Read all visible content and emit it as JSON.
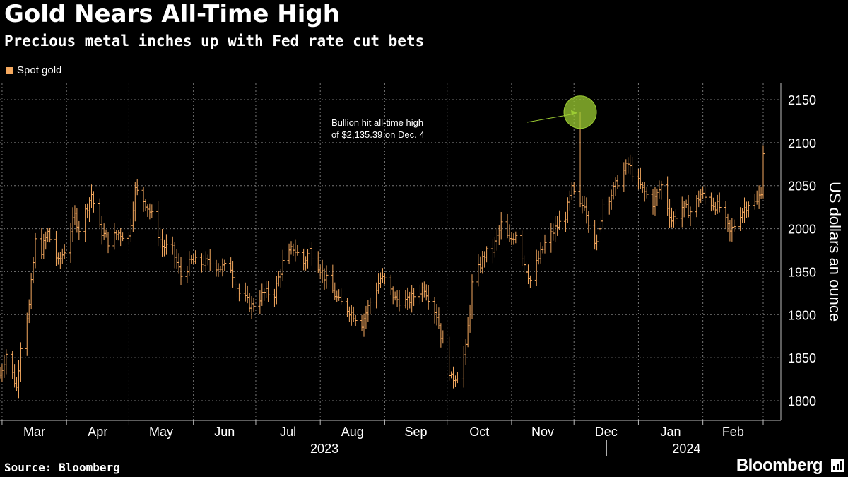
{
  "title": "Gold Nears All-Time High",
  "subtitle": "Precious metal inches up with Fed rate cut bets",
  "source": "Source: Bloomberg",
  "brand": "Bloomberg",
  "colors": {
    "series": "#f5a95f",
    "annotation": "#9ccc33",
    "grid": "#777777",
    "background": "#000000"
  },
  "chart_data": {
    "type": "ohlc",
    "title": "Gold Nears All-Time High",
    "legend": [
      "Spot gold"
    ],
    "ylabel": "US dollars an ounce",
    "ylim": [
      1780,
      2160
    ],
    "yticks": [
      1800,
      1850,
      1900,
      1950,
      2000,
      2050,
      2100,
      2150
    ],
    "x_month_labels": [
      "Mar",
      "Apr",
      "May",
      "Jun",
      "Jul",
      "Aug",
      "Sep",
      "Oct",
      "Nov",
      "Dec",
      "Jan",
      "Feb"
    ],
    "x_year_labels": [
      "2023",
      "2024"
    ],
    "x_range": [
      "2023-02-28",
      "2024-03-01"
    ],
    "annotation": {
      "text_line1": "Bullion hit all-time high",
      "text_line2": "of $2,135.39 on Dec. 4",
      "date": "2023-12-04",
      "value": 2135.39
    },
    "anchors": [
      [
        "2023-02-28",
        1830
      ],
      [
        "2023-03-03",
        1855
      ],
      [
        "2023-03-08",
        1815
      ],
      [
        "2023-03-10",
        1865
      ],
      [
        "2023-03-14",
        1910
      ],
      [
        "2023-03-17",
        1985
      ],
      [
        "2023-03-20",
        1975
      ],
      [
        "2023-03-23",
        1995
      ],
      [
        "2023-03-28",
        1960
      ],
      [
        "2023-03-31",
        1975
      ],
      [
        "2023-04-05",
        2015
      ],
      [
        "2023-04-07",
        2000
      ],
      [
        "2023-04-13",
        2040
      ],
      [
        "2023-04-17",
        2000
      ],
      [
        "2023-04-21",
        1985
      ],
      [
        "2023-04-26",
        1995
      ],
      [
        "2023-05-01",
        1990
      ],
      [
        "2023-05-04",
        2045
      ],
      [
        "2023-05-09",
        2030
      ],
      [
        "2023-05-12",
        2015
      ],
      [
        "2023-05-17",
        1980
      ],
      [
        "2023-05-22",
        1975
      ],
      [
        "2023-05-26",
        1945
      ],
      [
        "2023-05-31",
        1962
      ],
      [
        "2023-06-05",
        1960
      ],
      [
        "2023-06-09",
        1960
      ],
      [
        "2023-06-14",
        1955
      ],
      [
        "2023-06-19",
        1955
      ],
      [
        "2023-06-23",
        1925
      ],
      [
        "2023-06-29",
        1910
      ],
      [
        "2023-07-05",
        1925
      ],
      [
        "2023-07-10",
        1925
      ],
      [
        "2023-07-14",
        1960
      ],
      [
        "2023-07-19",
        1978
      ],
      [
        "2023-07-24",
        1960
      ],
      [
        "2023-07-27",
        1975
      ],
      [
        "2023-07-31",
        1958
      ],
      [
        "2023-08-04",
        1940
      ],
      [
        "2023-08-10",
        1915
      ],
      [
        "2023-08-15",
        1905
      ],
      [
        "2023-08-21",
        1890
      ],
      [
        "2023-08-25",
        1915
      ],
      [
        "2023-08-30",
        1942
      ],
      [
        "2023-09-01",
        1940
      ],
      [
        "2023-09-06",
        1918
      ],
      [
        "2023-09-12",
        1915
      ],
      [
        "2023-09-15",
        1922
      ],
      [
        "2023-09-20",
        1932
      ],
      [
        "2023-09-26",
        1900
      ],
      [
        "2023-09-29",
        1865
      ],
      [
        "2023-10-03",
        1825
      ],
      [
        "2023-10-06",
        1830
      ],
      [
        "2023-10-10",
        1860
      ],
      [
        "2023-10-13",
        1935
      ],
      [
        "2023-10-19",
        1970
      ],
      [
        "2023-10-23",
        1975
      ],
      [
        "2023-10-27",
        2005
      ],
      [
        "2023-10-31",
        1985
      ],
      [
        "2023-11-03",
        1995
      ],
      [
        "2023-11-07",
        1960
      ],
      [
        "2023-11-10",
        1940
      ],
      [
        "2023-11-14",
        1965
      ],
      [
        "2023-11-17",
        1982
      ],
      [
        "2023-11-22",
        2000
      ],
      [
        "2023-11-27",
        2015
      ],
      [
        "2023-11-30",
        2045
      ],
      [
        "2023-12-04",
        2025
      ],
      [
        "2023-12-06",
        2030
      ],
      [
        "2023-12-08",
        2010
      ],
      [
        "2023-12-12",
        1980
      ],
      [
        "2023-12-15",
        2030
      ],
      [
        "2023-12-19",
        2040
      ],
      [
        "2023-12-22",
        2055
      ],
      [
        "2023-12-27",
        2075
      ],
      [
        "2023-12-29",
        2065
      ],
      [
        "2024-01-03",
        2045
      ],
      [
        "2024-01-08",
        2030
      ],
      [
        "2024-01-12",
        2050
      ],
      [
        "2024-01-17",
        2010
      ],
      [
        "2024-01-22",
        2025
      ],
      [
        "2024-01-26",
        2020
      ],
      [
        "2024-01-31",
        2040
      ],
      [
        "2024-02-05",
        2030
      ],
      [
        "2024-02-09",
        2025
      ],
      [
        "2024-02-14",
        1995
      ],
      [
        "2024-02-19",
        2018
      ],
      [
        "2024-02-23",
        2030
      ],
      [
        "2024-02-27",
        2030
      ],
      [
        "2024-02-29",
        2045
      ],
      [
        "2024-03-01",
        2090
      ],
      [
        "2024-03-02",
        2095
      ]
    ],
    "spike": {
      "date": "2023-12-04",
      "high": 2135.39,
      "low": 2025
    }
  }
}
